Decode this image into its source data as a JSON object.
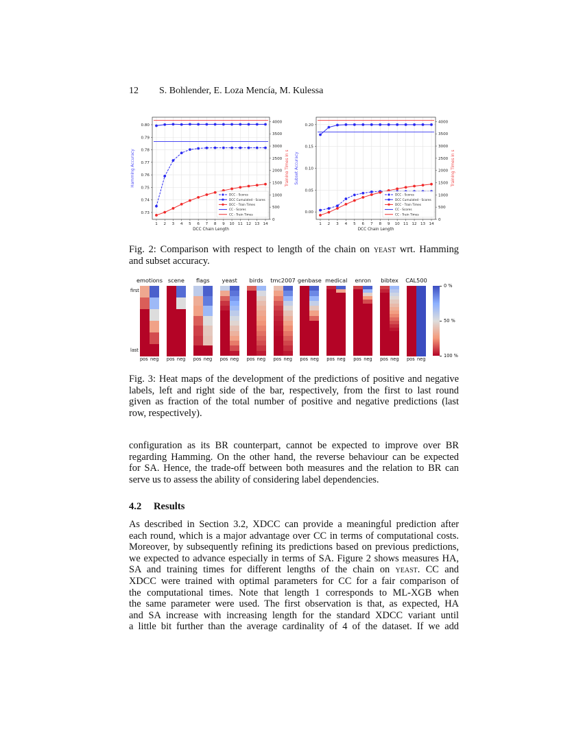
{
  "header": {
    "page_number": "12",
    "authors": "S. Bohlender, E. Loza Mencía, M. Kulessa"
  },
  "figure2": {
    "caption_lines": [
      [
        "Fig. 2: Comparison with respect to length of the chain on ",
        "yeast",
        " wrt. Hamming"
      ],
      [
        "and subset accuracy."
      ]
    ]
  },
  "figure3": {
    "caption_lines": [
      "Fig. 3: Heat maps of the development of the predictions of positive and negative",
      "labels, left and right side of the bar, respectively, from the first to last round",
      "given as fraction of the total number of positive and negative predictions (last",
      "row, respectively)."
    ]
  },
  "paragraph1": [
    "configuration as its BR counterpart, cannot be expected to improve over BR",
    "regarding Hamming. On the other hand, the reverse behaviour can be expected",
    "for SA.  Hence, the trade-off between both measures and the relation to BR can",
    "serve us to assess the ability of considering label dependencies."
  ],
  "section": {
    "number": "4.2",
    "title": "Results"
  },
  "paragraph2": [
    [
      "As described in Section 3.2, XDCC can provide a meaningful prediction after"
    ],
    [
      "each round, which is a major advantage over CC in terms of computational costs."
    ],
    [
      "Moreover, by subsequently refining its predictions based on previous predictions,"
    ],
    [
      "we expected to advance especially in terms of SA. Figure 2 shows measures HA,"
    ],
    [
      "SA and training times for different lengths of the chain on ",
      "yeast",
      ". CC and"
    ],
    [
      "XDCC were trained with optimal parameters for CC for a fair comparison of"
    ],
    [
      "the computational times. Note that length 1 corresponds to ML-XGB when"
    ],
    [
      "the same parameter were used. The first observation is that, as expected, HA"
    ],
    [
      "and SA increase with increasing length for the standard XDCC variant until"
    ],
    [
      "a little bit further than the average cardinality of 4 of the dataset. If we add"
    ]
  ],
  "chart_data": [
    {
      "type": "line",
      "title": "",
      "xlabel": "DCC Chain Length",
      "ylabel": "Hamming Accuracy",
      "y2label": "Training Times in s",
      "x": [
        1,
        2,
        3,
        4,
        5,
        6,
        7,
        8,
        9,
        10,
        11,
        12,
        13,
        14
      ],
      "ylim": [
        0.7245,
        0.806
      ],
      "y2lim": [
        0,
        4180
      ],
      "yticks": [
        0.73,
        0.74,
        0.75,
        0.76,
        0.77,
        0.78,
        0.79,
        0.8
      ],
      "ytick_labels": [
        "0.73",
        "0.74",
        "0.75",
        "0.76",
        "0.77",
        "0.78",
        "0.79",
        "0.80"
      ],
      "y2ticks": [
        0,
        500,
        1000,
        1500,
        2000,
        2500,
        3000,
        3500,
        4000
      ],
      "grid": true,
      "legend": "lower-right",
      "colors": {
        "blue": "#2929f0",
        "red": "#f02929",
        "ylabel": "#4a4af5",
        "y2label": "#f04a4a"
      },
      "series": [
        {
          "name": "DCC - Scores",
          "axis": "left",
          "color": "blue",
          "dash": true,
          "marker": true,
          "values": [
            0.735,
            0.759,
            0.7715,
            0.7775,
            0.7802,
            0.7811,
            0.7815,
            0.7816,
            0.7816,
            0.7816,
            0.7816,
            0.7816,
            0.7816,
            0.7816
          ]
        },
        {
          "name": "DCC Cumulated - Scores",
          "axis": "left",
          "color": "blue",
          "dash": false,
          "marker": true,
          "values": [
            0.7992,
            0.8001,
            0.8004,
            0.8002,
            0.8004,
            0.8003,
            0.8003,
            0.8003,
            0.8003,
            0.8003,
            0.8003,
            0.8003,
            0.8003,
            0.8003
          ]
        },
        {
          "name": "DCC - Train Times",
          "axis": "right",
          "color": "red",
          "dash": false,
          "marker": true,
          "values": [
            170,
            290,
            450,
            620,
            770,
            900,
            1010,
            1100,
            1180,
            1250,
            1310,
            1360,
            1400,
            1440
          ]
        },
        {
          "name": "CC - Scores",
          "axis": "left",
          "color": "blue",
          "dash": false,
          "marker": false,
          "constant": 0.7866
        },
        {
          "name": "CC - Train Times",
          "axis": "right",
          "color": "red",
          "dash": false,
          "marker": false,
          "constant": 4050
        }
      ]
    },
    {
      "type": "line",
      "title": "",
      "xlabel": "DCC Chain Length",
      "ylabel": "Subset Accuracy",
      "y2label": "Training Times in s",
      "x": [
        1,
        2,
        3,
        4,
        5,
        6,
        7,
        8,
        9,
        10,
        11,
        12,
        13,
        14
      ],
      "ylim": [
        -0.017,
        0.217
      ],
      "y2lim": [
        0,
        4180
      ],
      "yticks": [
        0.0,
        0.05,
        0.1,
        0.15,
        0.2
      ],
      "ytick_labels": [
        "0.00",
        "0.05",
        "0.10",
        "0.15",
        "0.20"
      ],
      "y2ticks": [
        0,
        500,
        1000,
        1500,
        2000,
        2500,
        3000,
        3500,
        4000
      ],
      "grid": true,
      "legend": "lower-right",
      "colors": {
        "blue": "#2929f0",
        "red": "#f02929",
        "ylabel": "#4a4af5",
        "y2label": "#f04a4a"
      },
      "series": [
        {
          "name": "DCC - Scores",
          "axis": "left",
          "color": "blue",
          "dash": true,
          "marker": true,
          "values": [
            0.004,
            0.008,
            0.014,
            0.03,
            0.039,
            0.043,
            0.046,
            0.047,
            0.047,
            0.047,
            0.047,
            0.047,
            0.047,
            0.047
          ]
        },
        {
          "name": "DCC Cumulated - Scores",
          "axis": "left",
          "color": "blue",
          "dash": false,
          "marker": true,
          "values": [
            0.177,
            0.194,
            0.199,
            0.2,
            0.2,
            0.2,
            0.2,
            0.2,
            0.2,
            0.2,
            0.2,
            0.2,
            0.2,
            0.2
          ]
        },
        {
          "name": "DCC - Train Times",
          "axis": "right",
          "color": "red",
          "dash": false,
          "marker": true,
          "values": [
            170,
            290,
            450,
            620,
            770,
            900,
            1010,
            1100,
            1180,
            1250,
            1310,
            1360,
            1400,
            1440
          ]
        },
        {
          "name": "CC - Scores",
          "axis": "left",
          "color": "blue",
          "dash": false,
          "marker": false,
          "constant": 0.183
        },
        {
          "name": "CC - Train Times",
          "axis": "right",
          "color": "red",
          "dash": false,
          "marker": false,
          "constant": 4050
        }
      ]
    },
    {
      "type": "heatmap",
      "row_labels": {
        "first": "first",
        "last": "last"
      },
      "column_labels": [
        "pos",
        "neg"
      ],
      "colorbar": {
        "ticks": [
          0,
          0.5,
          1
        ],
        "labels": [
          "0 %",
          "50 %",
          "100 %"
        ]
      },
      "colormap_stops": [
        "#3b4cc0",
        "#8db0fe",
        "#dddddd",
        "#f49a7b",
        "#b40426"
      ],
      "datasets": [
        {
          "name": "emotions",
          "pos": [
            0.7,
            0.85,
            1,
            1,
            1,
            1
          ],
          "neg": [
            0.05,
            0.3,
            0.5,
            0.72,
            0.88,
            1
          ]
        },
        {
          "name": "scene",
          "pos": [
            1,
            1,
            1,
            1,
            1,
            1
          ],
          "neg": [
            0.08,
            0.5,
            1,
            1,
            1,
            1
          ]
        },
        {
          "name": "flags",
          "pos": [
            0.4,
            0.68,
            0.72,
            0.85,
            0.9,
            0.92,
            1
          ],
          "neg": [
            0.05,
            0.12,
            0.3,
            0.5,
            0.58,
            0.6,
            1
          ]
        },
        {
          "name": "yeast",
          "pos": [
            0.42,
            0.7,
            0.85,
            0.92,
            0.96,
            1,
            1,
            1,
            1,
            1,
            1,
            1,
            1,
            1
          ],
          "neg": [
            0.05,
            0.1,
            0.18,
            0.25,
            0.32,
            0.4,
            0.47,
            0.53,
            0.6,
            0.66,
            0.72,
            0.8,
            0.88,
            0.97
          ]
        },
        {
          "name": "birds",
          "pos": [
            0.85,
            1,
            1,
            1,
            1,
            1,
            1,
            1,
            1,
            1,
            1,
            1,
            1,
            1
          ],
          "neg": [
            0.3,
            0.48,
            0.56,
            0.62,
            0.66,
            0.7,
            0.73,
            0.76,
            0.79,
            0.82,
            0.85,
            0.88,
            0.92,
            0.96
          ]
        },
        {
          "name": "tmc2007",
          "pos": [
            0.62,
            0.72,
            0.8,
            0.86,
            0.9,
            0.93,
            0.95,
            0.97,
            0.98,
            0.99,
            1,
            1,
            1,
            1
          ],
          "neg": [
            0.05,
            0.15,
            0.28,
            0.42,
            0.52,
            0.6,
            0.66,
            0.72,
            0.77,
            0.81,
            0.85,
            0.89,
            0.93,
            0.97
          ]
        },
        {
          "name": "genbase",
          "pos": [
            1,
            1,
            1,
            1,
            1,
            1,
            1,
            1,
            1,
            1,
            1,
            1,
            1,
            1
          ],
          "neg": [
            0.05,
            0.15,
            0.28,
            0.42,
            0.58,
            0.72,
            0.84,
            1,
            1,
            1,
            1,
            1,
            1,
            1
          ]
        },
        {
          "name": "medical",
          "pos": [
            0.95,
            1,
            1,
            1,
            1,
            1,
            1,
            1,
            1,
            1,
            1,
            1,
            1,
            1,
            1,
            1,
            1,
            1,
            1,
            1
          ],
          "neg": [
            0.05,
            0.7,
            1,
            1,
            1,
            1,
            1,
            1,
            1,
            1,
            1,
            1,
            1,
            1,
            1,
            1,
            1,
            1,
            1,
            1
          ]
        },
        {
          "name": "enron",
          "pos": [
            0.9,
            1,
            1,
            1,
            1,
            1,
            1,
            1,
            1,
            1,
            1,
            1,
            1,
            1,
            1,
            1,
            1,
            1,
            1,
            1
          ],
          "neg": [
            0.05,
            0.3,
            0.55,
            0.75,
            0.88,
            1,
            1,
            1,
            1,
            1,
            1,
            1,
            1,
            1,
            1,
            1,
            1,
            1,
            1,
            1
          ]
        },
        {
          "name": "bibtex",
          "pos": [
            0.9,
            0.95,
            1,
            1,
            1,
            1,
            1,
            1,
            1,
            1,
            1,
            1,
            1,
            1,
            1,
            1,
            1,
            1,
            1,
            1
          ],
          "neg": [
            0.3,
            0.38,
            0.45,
            0.52,
            0.58,
            0.63,
            0.68,
            0.73,
            0.78,
            0.83,
            0.88,
            0.93,
            0.97,
            1,
            1,
            1,
            1,
            1,
            1,
            1
          ]
        },
        {
          "name": "CAL500",
          "pos": [
            1
          ],
          "neg": [
            0
          ]
        }
      ]
    }
  ]
}
